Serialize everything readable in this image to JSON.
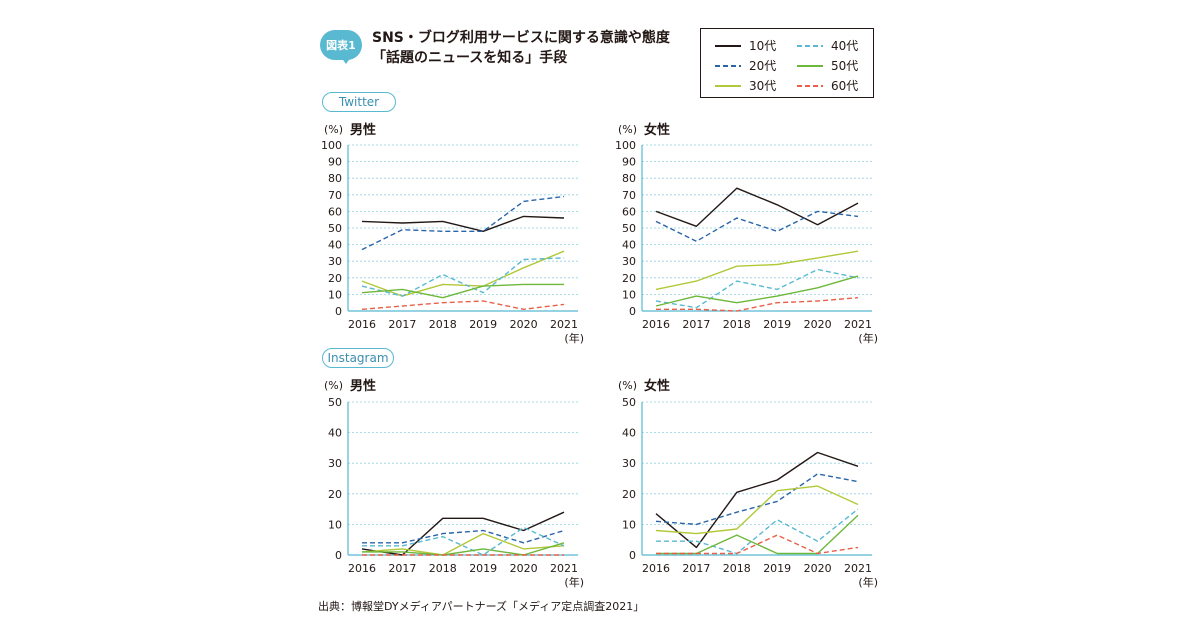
{
  "header": {
    "badge": "図表1",
    "title_line1": "SNS・ブログ利用サービスに関する意識や態度",
    "title_line2": "「話題のニュースを知る」手段"
  },
  "legend": [
    {
      "name": "10代",
      "color": "#231815",
      "dash": false
    },
    {
      "name": "20代",
      "color": "#2a65a8",
      "dash": true
    },
    {
      "name": "30代",
      "color": "#b2c838",
      "dash": false
    },
    {
      "name": "40代",
      "color": "#58b9d1",
      "dash": true
    },
    {
      "name": "50代",
      "color": "#6db83a",
      "dash": false
    },
    {
      "name": "60代",
      "color": "#e8604a",
      "dash": true
    }
  ],
  "sections": {
    "twitter": "Twitter",
    "instagram": "Instagram"
  },
  "source": "出典：博報堂DYメディアパートナーズ「メディア定点調査2021」",
  "chart_data": [
    {
      "type": "line",
      "platform": "Twitter",
      "title": "男性",
      "ylabel": "(%)",
      "xlabel": "(年)",
      "categories": [
        "2016",
        "2017",
        "2018",
        "2019",
        "2020",
        "2021"
      ],
      "ylim": [
        0,
        100
      ],
      "yticks": [
        0,
        10,
        20,
        30,
        40,
        50,
        60,
        70,
        80,
        90,
        100
      ],
      "series": [
        {
          "name": "10代",
          "values": [
            54,
            53,
            54,
            48,
            57,
            56
          ]
        },
        {
          "name": "20代",
          "values": [
            37,
            49,
            48,
            48,
            66,
            69
          ]
        },
        {
          "name": "30代",
          "values": [
            18,
            9,
            16,
            15,
            26,
            36
          ]
        },
        {
          "name": "40代",
          "values": [
            15,
            9,
            22,
            11,
            31,
            32
          ]
        },
        {
          "name": "50代",
          "values": [
            11,
            13,
            8,
            15,
            16,
            16
          ]
        },
        {
          "name": "60代",
          "values": [
            1,
            3,
            5,
            6,
            1,
            4
          ]
        }
      ]
    },
    {
      "type": "line",
      "platform": "Twitter",
      "title": "女性",
      "ylabel": "(%)",
      "xlabel": "(年)",
      "categories": [
        "2016",
        "2017",
        "2018",
        "2019",
        "2020",
        "2021"
      ],
      "ylim": [
        0,
        100
      ],
      "yticks": [
        0,
        10,
        20,
        30,
        40,
        50,
        60,
        70,
        80,
        90,
        100
      ],
      "series": [
        {
          "name": "10代",
          "values": [
            60,
            51,
            74,
            64,
            52,
            65
          ]
        },
        {
          "name": "20代",
          "values": [
            54,
            42,
            56,
            48,
            60,
            57
          ]
        },
        {
          "name": "30代",
          "values": [
            13,
            18,
            27,
            28,
            32,
            36
          ]
        },
        {
          "name": "40代",
          "values": [
            6,
            2,
            18,
            13,
            25,
            20
          ]
        },
        {
          "name": "50代",
          "values": [
            3,
            9,
            5,
            9,
            14,
            21
          ]
        },
        {
          "name": "60代",
          "values": [
            1,
            1,
            0,
            5,
            6,
            8
          ]
        }
      ]
    },
    {
      "type": "line",
      "platform": "Instagram",
      "title": "男性",
      "ylabel": "(%)",
      "xlabel": "(年)",
      "categories": [
        "2016",
        "2017",
        "2018",
        "2019",
        "2020",
        "2021"
      ],
      "ylim": [
        0,
        50
      ],
      "yticks": [
        0,
        10,
        20,
        30,
        40,
        50
      ],
      "series": [
        {
          "name": "10代",
          "values": [
            2,
            0,
            12,
            12,
            8,
            14
          ]
        },
        {
          "name": "20代",
          "values": [
            4,
            4,
            7,
            8,
            4,
            8
          ]
        },
        {
          "name": "30代",
          "values": [
            1,
            2,
            0,
            7,
            2,
            3
          ]
        },
        {
          "name": "40代",
          "values": [
            3,
            3,
            6,
            0,
            9,
            3
          ]
        },
        {
          "name": "50代",
          "values": [
            1,
            1,
            0,
            2,
            0,
            4
          ]
        },
        {
          "name": "60代",
          "values": [
            0,
            0,
            0,
            0,
            0,
            0
          ]
        }
      ]
    },
    {
      "type": "line",
      "platform": "Instagram",
      "title": "女性",
      "ylabel": "(%)",
      "xlabel": "(年)",
      "categories": [
        "2016",
        "2017",
        "2018",
        "2019",
        "2020",
        "2021"
      ],
      "ylim": [
        0,
        50
      ],
      "yticks": [
        0,
        10,
        20,
        30,
        40,
        50
      ],
      "series": [
        {
          "name": "10代",
          "values": [
            13.5,
            2.5,
            20.5,
            24.5,
            33.5,
            29
          ]
        },
        {
          "name": "20代",
          "values": [
            11,
            10,
            14,
            17.5,
            26.5,
            24
          ]
        },
        {
          "name": "30代",
          "values": [
            8,
            7,
            8.5,
            21,
            22.5,
            16.5
          ]
        },
        {
          "name": "40代",
          "values": [
            4.5,
            4.5,
            0.5,
            11.5,
            4.5,
            15
          ]
        },
        {
          "name": "50代",
          "values": [
            0.5,
            0.5,
            6.5,
            0.5,
            0.5,
            13
          ]
        },
        {
          "name": "60代",
          "values": [
            0.5,
            0.5,
            0.5,
            6.5,
            0.5,
            2.5
          ]
        }
      ]
    }
  ]
}
